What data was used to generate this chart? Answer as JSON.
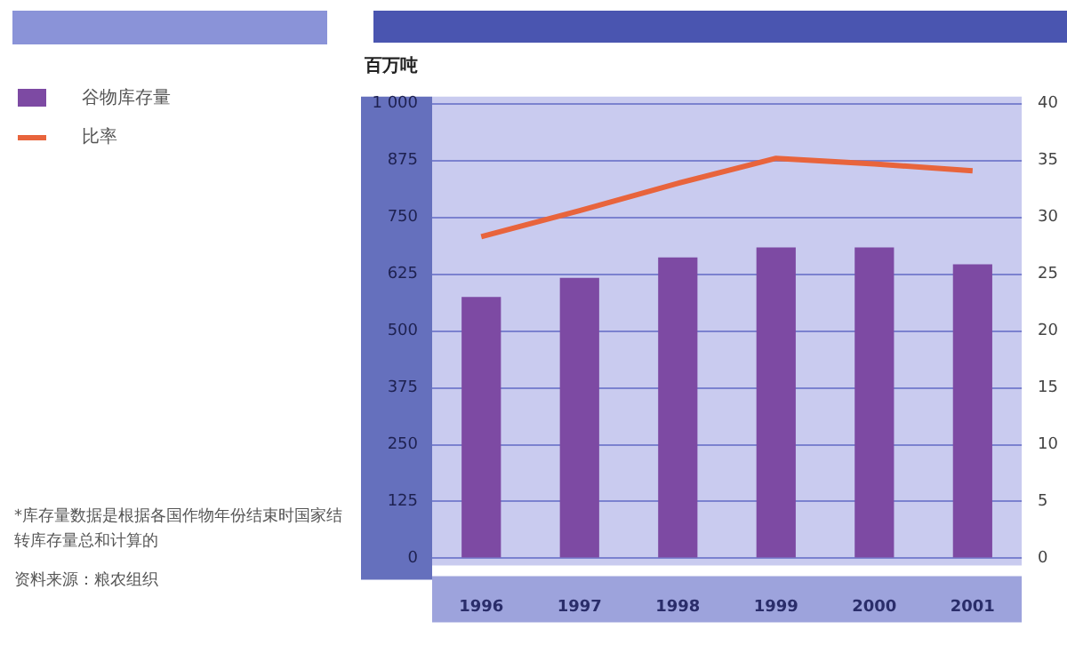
{
  "chart_data": {
    "type": "bar",
    "ylabel": "百万吨",
    "categories": [
      "1996",
      "1997",
      "1998",
      "1999",
      "2000",
      "2001"
    ],
    "series": [
      {
        "name": "谷物库存量",
        "color": "#7d4aa3",
        "values": [
          575,
          617,
          662,
          684,
          684,
          647
        ]
      },
      {
        "name": "比率",
        "type": "line",
        "axis": "y2",
        "color": "#e8643c",
        "values": [
          28.3,
          30.6,
          33.0,
          35.2,
          34.7,
          34.1
        ]
      }
    ],
    "ylim": [
      0,
      1000
    ],
    "yticks": [
      0,
      125,
      250,
      375,
      500,
      625,
      750,
      875,
      {
        "value": 1000,
        "label": "1 000"
      }
    ],
    "y2lim": [
      0,
      40
    ],
    "y2ticks": [
      0,
      5,
      10,
      15,
      20,
      25,
      30,
      35,
      40
    ],
    "grid": "y",
    "legend": "left",
    "marker": "none",
    "annotations": [
      "*库存量数据是根据各国作物年份结束时国家结转库存量总和计算的",
      "资料来源：粮农组织"
    ]
  }
}
